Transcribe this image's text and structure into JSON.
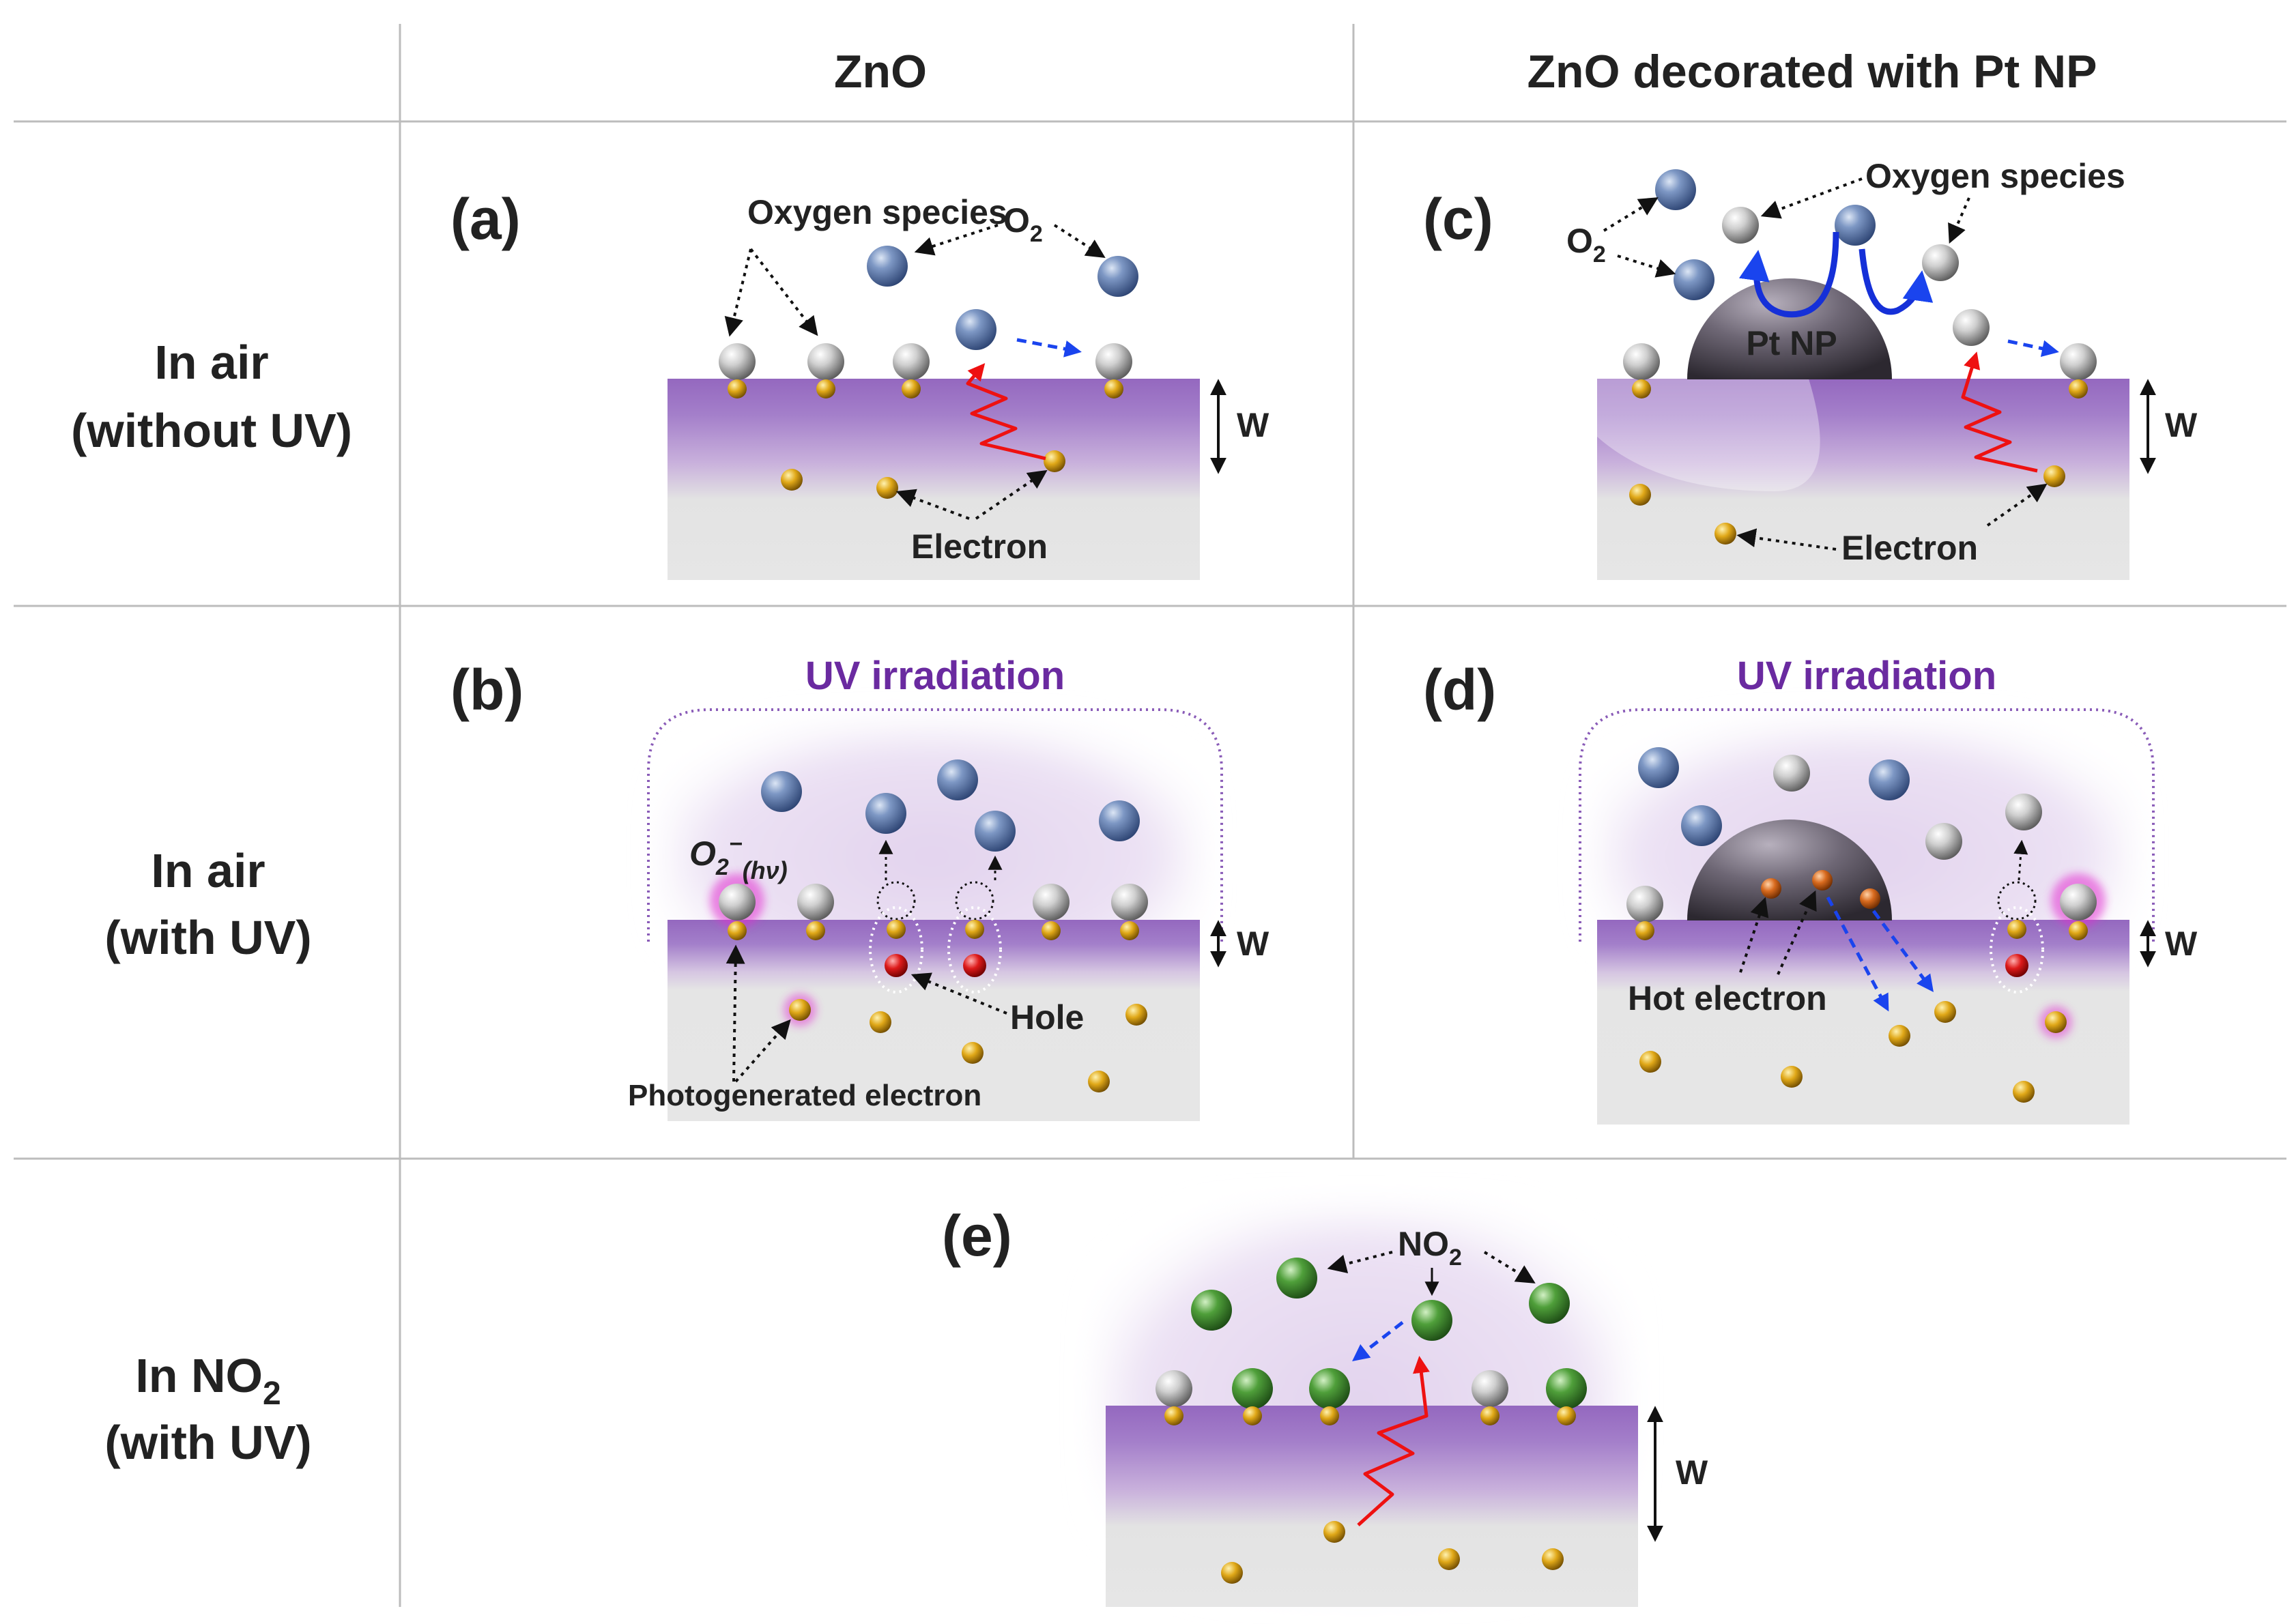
{
  "columns": {
    "zno": "ZnO",
    "zno_pt": "ZnO decorated with Pt NP"
  },
  "rows": {
    "air_no_uv": {
      "line1": "In air",
      "line2": "(without UV)"
    },
    "air_uv": {
      "line1": "In air",
      "line2": "(with UV)"
    },
    "no2_uv": {
      "line1_pre": "In NO",
      "line1_sub": "2",
      "line2": "(with UV)"
    }
  },
  "panels": {
    "a": {
      "label": "(a)",
      "oxygen_species": "Oxygen species",
      "o2": "O",
      "o2_sub": "2",
      "electron": "Electron",
      "w": "W"
    },
    "b": {
      "label": "(b)",
      "uv": "UV irradiation",
      "o2minus": "O",
      "o2minus_sub": "2",
      "o2minus_sup": "−",
      "hv": "(hν)",
      "hole": "Hole",
      "photoelectron": "Photogenerated electron",
      "w": "W"
    },
    "c": {
      "label": "(c)",
      "oxygen_species": "Oxygen species",
      "o2": "O",
      "o2_sub": "2",
      "pt": "Pt NP",
      "electron": "Electron",
      "w": "W"
    },
    "d": {
      "label": "(d)",
      "uv": "UV irradiation",
      "hot_electron": "Hot electron",
      "w": "W"
    },
    "e": {
      "label": "(e)",
      "no2": "NO",
      "no2_sub": "2",
      "w": "W"
    }
  },
  "colors": {
    "surface_purple": "#9c74c4",
    "substrate_gray": "#e6e6e6",
    "oxygen_blue": "#4f6fa6",
    "adsorbed_silver": "#c8c8c8",
    "electron_gold": "#d9a010",
    "hole_red": "#d01818",
    "no2_green": "#3f8f2f",
    "hot_electron_orange": "#d87020",
    "pt_gray": "#6b6470",
    "uv_text": "#6a2aa0",
    "photon_red": "#ee1111",
    "transfer_blue": "#1a44ee"
  }
}
